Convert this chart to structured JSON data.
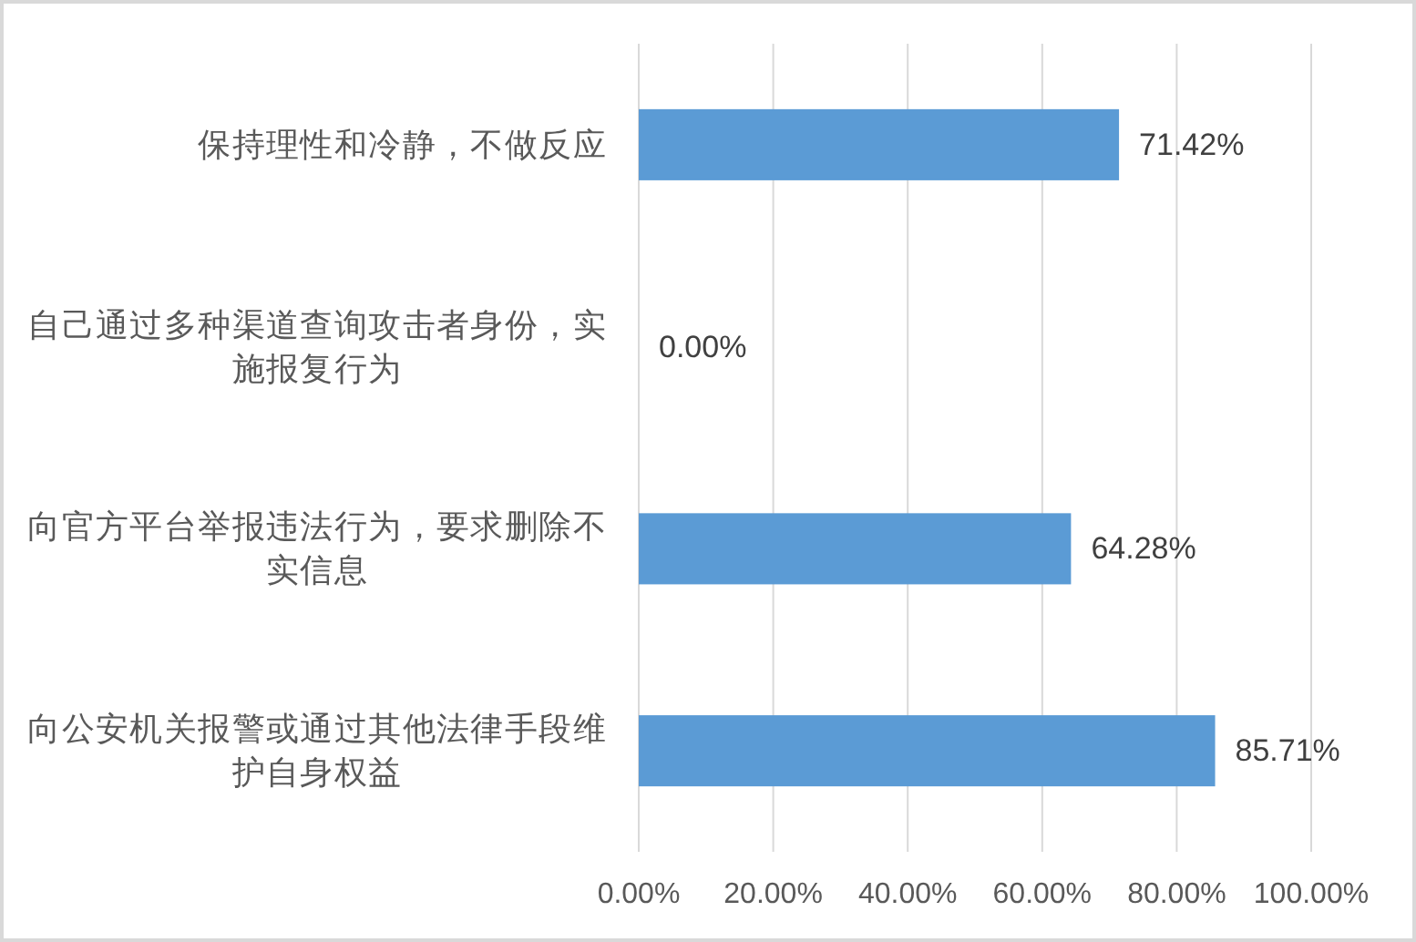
{
  "chart_data": {
    "type": "bar",
    "orientation": "horizontal",
    "categories": [
      "保持理性和冷静，不做反应",
      "自己通过多种渠道查询攻击者身份，实施报复行为",
      "向官方平台举报违法行为，要求删除不实信息",
      "向公安机关报警或通过其他法律手段维护自身权益"
    ],
    "values": [
      71.42,
      0,
      64.28,
      85.71
    ],
    "color": "#5b9bd5",
    "value_labels": [
      "71.42%",
      "0.00%",
      "64.28%",
      "85.71%"
    ],
    "xlim": [
      0,
      100
    ],
    "xticks": [
      {
        "value": 0,
        "label": "0.00%"
      },
      {
        "value": 20,
        "label": "20.00%"
      },
      {
        "value": 40,
        "label": "40.00%"
      },
      {
        "value": 60,
        "label": "60.00%"
      },
      {
        "value": 80,
        "label": "80.00%"
      },
      {
        "value": 100,
        "label": "100.00%"
      }
    ],
    "grid": "x"
  }
}
